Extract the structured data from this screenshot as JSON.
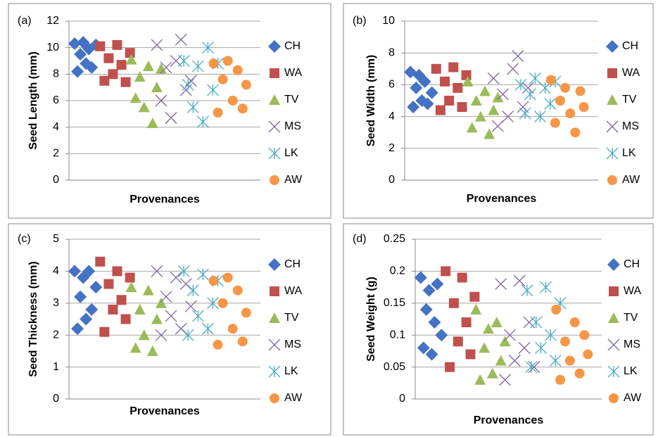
{
  "chart_data": [
    {
      "type": "scatter",
      "panel_label": "(a)",
      "ylabel": "Seed Length (mm)",
      "xlabel": "Provenances",
      "xlim": [
        0,
        270
      ],
      "ylim": [
        0,
        12
      ],
      "yticks": [
        0,
        2,
        4,
        6,
        8,
        10,
        12
      ],
      "grid": true,
      "legend": "right",
      "series": [
        {
          "name": "CH",
          "color": "#4472c4",
          "marker": "diamond",
          "x": [
            8,
            12,
            16,
            20,
            24,
            28,
            32,
            38
          ],
          "values": [
            10.3,
            8.2,
            9.5,
            10.4,
            8.8,
            9.9,
            8.5,
            10.2
          ]
        },
        {
          "name": "WA",
          "color": "#c0504d",
          "marker": "square",
          "x": [
            44,
            50,
            56,
            62,
            68,
            74,
            80,
            86
          ],
          "values": [
            10.1,
            7.5,
            9.2,
            8.0,
            10.2,
            8.7,
            7.4,
            9.6
          ]
        },
        {
          "name": "TV",
          "color": "#9bbb59",
          "marker": "triangle",
          "x": [
            88,
            94,
            100,
            106,
            112,
            118,
            124,
            130
          ],
          "values": [
            9.1,
            6.2,
            7.8,
            5.5,
            8.6,
            4.3,
            7.0,
            8.4
          ]
        },
        {
          "name": "MS",
          "color": "#8064a2",
          "marker": "x",
          "x": [
            124,
            130,
            137,
            144,
            151,
            158,
            165,
            172
          ],
          "values": [
            10.2,
            6.0,
            8.5,
            4.7,
            9.0,
            10.6,
            6.8,
            7.5
          ]
        },
        {
          "name": "LK",
          "color": "#4bacc6",
          "marker": "star",
          "x": [
            162,
            168,
            175,
            182,
            189,
            196,
            203,
            210
          ],
          "values": [
            9.0,
            7.2,
            5.5,
            8.6,
            4.4,
            10.0,
            6.8,
            8.8
          ]
        },
        {
          "name": "AW",
          "color": "#f79646",
          "marker": "circle",
          "x": [
            204,
            210,
            217,
            224,
            231,
            238,
            245,
            250
          ],
          "values": [
            8.8,
            5.1,
            7.6,
            9.0,
            6.0,
            8.3,
            5.4,
            7.2
          ]
        }
      ]
    },
    {
      "type": "scatter",
      "panel_label": "(b)",
      "ylabel": "Seed Width (mm)",
      "xlabel": "Provenances",
      "xlim": [
        0,
        270
      ],
      "ylim": [
        0,
        10
      ],
      "yticks": [
        0,
        2,
        4,
        6,
        8,
        10
      ],
      "grid": true,
      "legend": "right",
      "series": [
        {
          "name": "CH",
          "color": "#4472c4",
          "marker": "diamond",
          "x": [
            8,
            12,
            16,
            20,
            24,
            28,
            32,
            38
          ],
          "values": [
            6.8,
            4.6,
            5.8,
            6.6,
            5.0,
            6.2,
            4.8,
            5.5
          ]
        },
        {
          "name": "WA",
          "color": "#c0504d",
          "marker": "square",
          "x": [
            44,
            50,
            56,
            62,
            68,
            74,
            80,
            86
          ],
          "values": [
            7.0,
            4.4,
            6.2,
            5.0,
            7.1,
            5.8,
            4.6,
            6.6
          ]
        },
        {
          "name": "TV",
          "color": "#9bbb59",
          "marker": "triangle",
          "x": [
            88,
            94,
            100,
            106,
            112,
            118,
            124,
            130
          ],
          "values": [
            6.2,
            3.3,
            5.0,
            4.0,
            5.6,
            2.9,
            4.4,
            5.2
          ]
        },
        {
          "name": "MS",
          "color": "#8064a2",
          "marker": "x",
          "x": [
            124,
            130,
            137,
            144,
            151,
            158,
            165,
            172
          ],
          "values": [
            6.4,
            3.4,
            5.4,
            4.0,
            7.0,
            7.8,
            4.6,
            5.8
          ]
        },
        {
          "name": "LK",
          "color": "#4bacc6",
          "marker": "star",
          "x": [
            162,
            168,
            175,
            182,
            189,
            196,
            203,
            210
          ],
          "values": [
            6.0,
            4.2,
            5.4,
            6.4,
            4.0,
            5.8,
            4.8,
            6.2
          ]
        },
        {
          "name": "AW",
          "color": "#f79646",
          "marker": "circle",
          "x": [
            204,
            210,
            217,
            224,
            231,
            238,
            245,
            250
          ],
          "values": [
            6.3,
            3.6,
            5.0,
            5.8,
            4.2,
            3.0,
            5.6,
            4.6
          ]
        }
      ]
    },
    {
      "type": "scatter",
      "panel_label": "(c)",
      "ylabel": "Seed Thickness (mm)",
      "xlabel": "Provenances",
      "xlim": [
        0,
        270
      ],
      "ylim": [
        0,
        5
      ],
      "yticks": [
        0,
        1,
        2,
        3,
        4,
        5
      ],
      "grid": true,
      "legend": "right",
      "series": [
        {
          "name": "CH",
          "color": "#4472c4",
          "marker": "diamond",
          "x": [
            8,
            12,
            16,
            20,
            24,
            28,
            32,
            38
          ],
          "values": [
            4.0,
            2.2,
            3.2,
            3.8,
            2.5,
            4.0,
            2.8,
            3.5
          ]
        },
        {
          "name": "WA",
          "color": "#c0504d",
          "marker": "square",
          "x": [
            44,
            50,
            56,
            62,
            68,
            74,
            80,
            86
          ],
          "values": [
            4.3,
            2.1,
            3.6,
            2.8,
            4.0,
            3.1,
            2.5,
            3.8
          ]
        },
        {
          "name": "TV",
          "color": "#9bbb59",
          "marker": "triangle",
          "x": [
            88,
            94,
            100,
            106,
            112,
            118,
            124,
            130
          ],
          "values": [
            3.5,
            1.6,
            2.8,
            2.0,
            3.4,
            1.5,
            2.5,
            3.0
          ]
        },
        {
          "name": "MS",
          "color": "#8064a2",
          "marker": "x",
          "x": [
            124,
            130,
            137,
            144,
            151,
            158,
            165,
            172
          ],
          "values": [
            4.0,
            2.0,
            3.2,
            2.6,
            3.8,
            2.2,
            3.6,
            2.9
          ]
        },
        {
          "name": "LK",
          "color": "#4bacc6",
          "marker": "star",
          "x": [
            162,
            168,
            175,
            182,
            189,
            196,
            203,
            210
          ],
          "values": [
            4.0,
            2.0,
            3.4,
            2.6,
            3.9,
            2.2,
            3.0,
            3.7
          ]
        },
        {
          "name": "AW",
          "color": "#f79646",
          "marker": "circle",
          "x": [
            204,
            210,
            217,
            224,
            231,
            238,
            245,
            250
          ],
          "values": [
            3.7,
            1.7,
            3.0,
            3.8,
            2.2,
            3.4,
            1.8,
            2.7
          ]
        }
      ]
    },
    {
      "type": "scatter",
      "panel_label": "(d)",
      "ylabel": "Seed Weight (g)",
      "xlabel": "Provenances",
      "xlim": [
        0,
        270
      ],
      "ylim": [
        0,
        0.25
      ],
      "yticks": [
        0,
        0.05,
        0.1,
        0.15,
        0.2,
        0.25
      ],
      "grid": true,
      "legend": "right",
      "series": [
        {
          "name": "CH",
          "color": "#4472c4",
          "marker": "diamond",
          "x": [
            8,
            12,
            16,
            20,
            24,
            28,
            32,
            38
          ],
          "values": [
            0.19,
            0.08,
            0.14,
            0.17,
            0.07,
            0.12,
            0.18,
            0.1
          ]
        },
        {
          "name": "WA",
          "color": "#c0504d",
          "marker": "square",
          "x": [
            44,
            50,
            56,
            62,
            68,
            74,
            80,
            86
          ],
          "values": [
            0.2,
            0.05,
            0.15,
            0.09,
            0.19,
            0.12,
            0.07,
            0.16
          ]
        },
        {
          "name": "TV",
          "color": "#9bbb59",
          "marker": "triangle",
          "x": [
            88,
            94,
            100,
            106,
            112,
            118,
            124,
            130
          ],
          "values": [
            0.14,
            0.03,
            0.08,
            0.11,
            0.04,
            0.12,
            0.06,
            0.09
          ]
        },
        {
          "name": "MS",
          "color": "#8064a2",
          "marker": "x",
          "x": [
            124,
            130,
            137,
            144,
            151,
            158,
            165,
            172
          ],
          "values": [
            0.18,
            0.03,
            0.1,
            0.06,
            0.185,
            0.08,
            0.12,
            0.05
          ]
        },
        {
          "name": "LK",
          "color": "#4bacc6",
          "marker": "star",
          "x": [
            162,
            168,
            175,
            182,
            189,
            196,
            203,
            210
          ],
          "values": [
            0.17,
            0.05,
            0.12,
            0.08,
            0.175,
            0.1,
            0.06,
            0.15
          ]
        },
        {
          "name": "AW",
          "color": "#f79646",
          "marker": "circle",
          "x": [
            204,
            210,
            217,
            224,
            231,
            238,
            245,
            250
          ],
          "values": [
            0.14,
            0.03,
            0.09,
            0.06,
            0.12,
            0.04,
            0.1,
            0.07
          ]
        }
      ]
    }
  ]
}
